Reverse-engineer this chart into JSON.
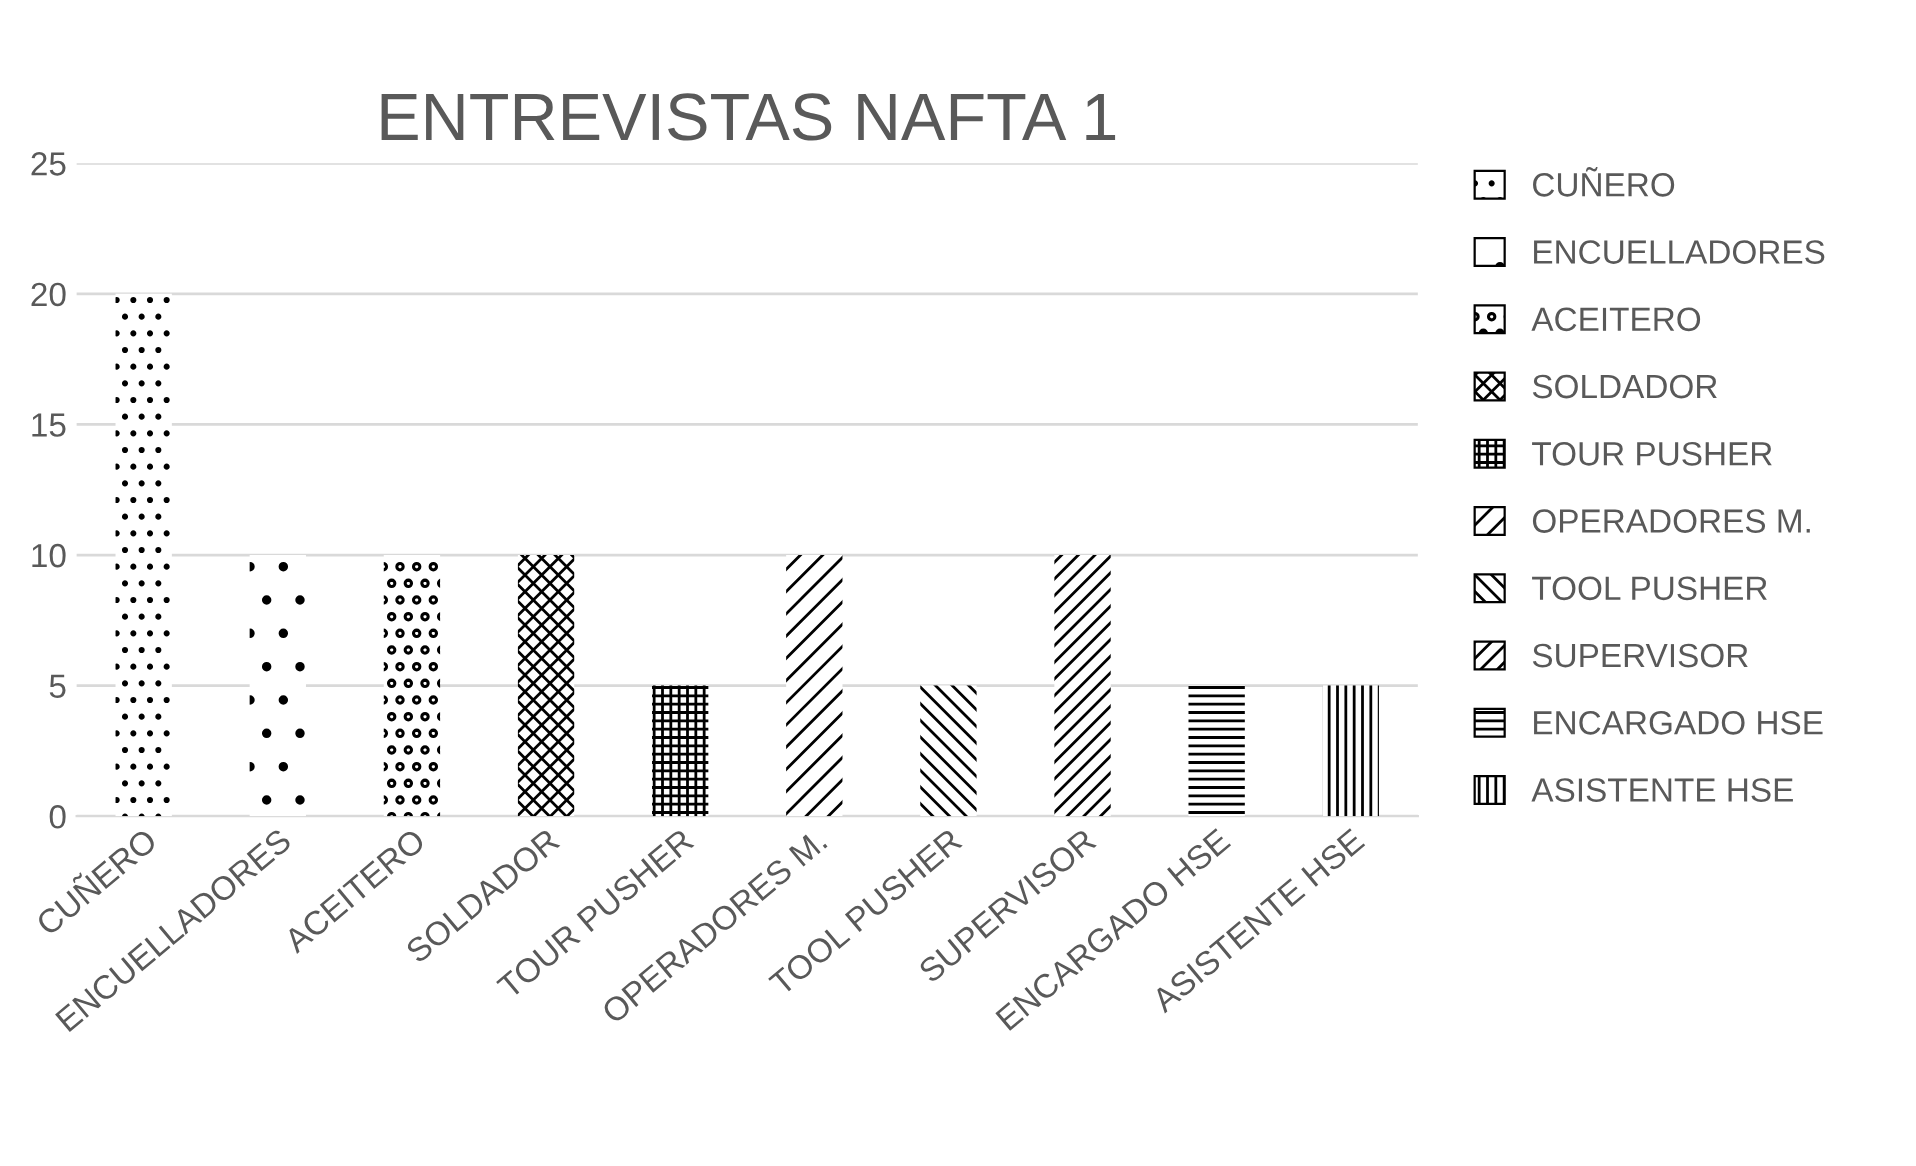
{
  "chart_data": {
    "type": "bar",
    "title": "ENTREVISTAS NAFTA 1",
    "categories": [
      "CUÑERO",
      "ENCUELLADORES",
      "ACEITERO",
      "SOLDADOR",
      "TOUR PUSHER",
      "OPERADORES M.",
      "TOOL PUSHER",
      "SUPERVISOR",
      "ENCARGADO HSE",
      "ASISTENTE HSE"
    ],
    "series": [
      {
        "name": "CUÑERO",
        "color": "#000000",
        "values": [
          20,
          null,
          null,
          null,
          null,
          null,
          null,
          null,
          null,
          null
        ]
      },
      {
        "name": "ENCUELLADORES",
        "color": "#000000",
        "values": [
          null,
          10,
          null,
          null,
          null,
          null,
          null,
          null,
          null,
          null
        ]
      },
      {
        "name": "ACEITERO",
        "color": "#000000",
        "values": [
          null,
          null,
          10,
          null,
          null,
          null,
          null,
          null,
          null,
          null
        ]
      },
      {
        "name": "SOLDADOR",
        "color": "#000000",
        "values": [
          null,
          null,
          null,
          10,
          null,
          null,
          null,
          null,
          null,
          null
        ]
      },
      {
        "name": "TOUR PUSHER",
        "color": "#000000",
        "values": [
          null,
          null,
          null,
          null,
          5,
          null,
          null,
          null,
          null,
          null
        ]
      },
      {
        "name": "OPERADORES M.",
        "color": "#000000",
        "values": [
          null,
          null,
          null,
          null,
          null,
          10,
          null,
          null,
          null,
          null
        ]
      },
      {
        "name": "TOOL PUSHER",
        "color": "#000000",
        "values": [
          null,
          null,
          null,
          null,
          null,
          null,
          5,
          null,
          null,
          null
        ]
      },
      {
        "name": "SUPERVISOR",
        "color": "#000000",
        "values": [
          null,
          null,
          null,
          null,
          null,
          null,
          null,
          10,
          null,
          null
        ]
      },
      {
        "name": "ENCARGADO HSE",
        "color": "#000000",
        "values": [
          null,
          null,
          null,
          null,
          null,
          null,
          null,
          null,
          5,
          null
        ]
      },
      {
        "name": "ASISTENTE HSE",
        "color": "#000000",
        "values": [
          null,
          null,
          null,
          null,
          null,
          null,
          null,
          null,
          null,
          5
        ]
      }
    ],
    "ylim": [
      0,
      25
    ],
    "yticks": [
      0,
      5,
      10,
      15,
      20,
      25
    ],
    "grid": "y",
    "legend": "right"
  }
}
